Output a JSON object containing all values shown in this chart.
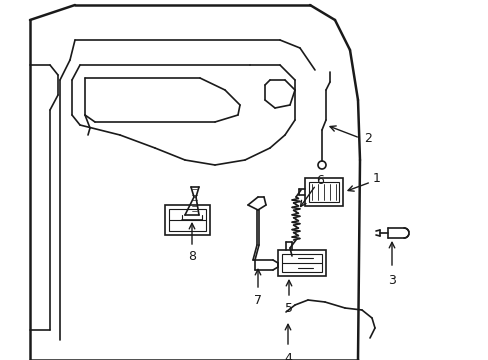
{
  "background_color": "#ffffff",
  "line_color": "#1a1a1a",
  "lw_thick": 1.8,
  "lw_med": 1.2,
  "lw_thin": 0.8,
  "fig_width": 4.89,
  "fig_height": 3.6,
  "dpi": 100,
  "label_fontsize": 9
}
